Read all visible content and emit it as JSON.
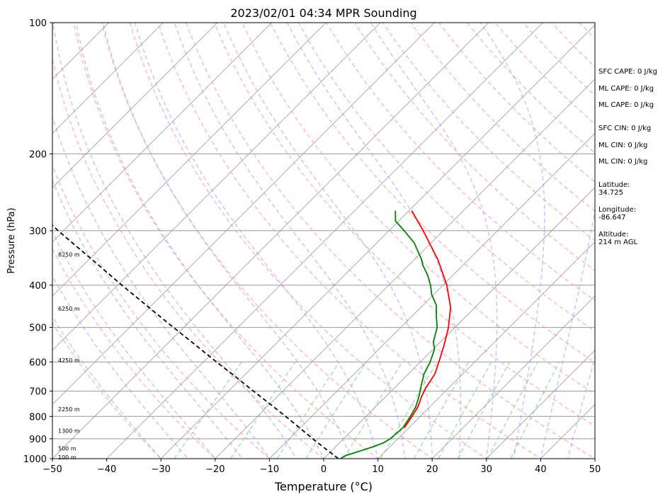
{
  "chart_data": {
    "type": "skew-t",
    "title": "2023/02/01 04:34 MPR Sounding",
    "xlabel": "Temperature (°C)",
    "ylabel": "Pressure (hPa)",
    "xlim": [
      -50,
      50
    ],
    "ylim": [
      1000,
      100
    ],
    "x_scale": "linear",
    "y_scale": "log",
    "skew_degrees": 45,
    "grid": true,
    "x_ticks": [
      "−50",
      "−40",
      "−30",
      "−20",
      "−10",
      "0",
      "10",
      "20",
      "30",
      "40",
      "50"
    ],
    "x_tick_values": [
      -50,
      -40,
      -30,
      -20,
      -10,
      0,
      10,
      20,
      30,
      40,
      50
    ],
    "y_ticks": [
      "100",
      "200",
      "300",
      "400",
      "500",
      "600",
      "700",
      "800",
      "900",
      "1000"
    ],
    "y_tick_values": [
      100,
      200,
      300,
      400,
      500,
      600,
      700,
      800,
      900,
      1000
    ],
    "height_labels": [
      {
        "text": "100 m",
        "p": 992
      },
      {
        "text": "500 m",
        "p": 948
      },
      {
        "text": "1300 m",
        "p": 862
      },
      {
        "text": "2250 m",
        "p": 770
      },
      {
        "text": "4250 m",
        "p": 595
      },
      {
        "text": "6250 m",
        "p": 453
      },
      {
        "text": "8250 m",
        "p": 340
      }
    ],
    "series": [
      {
        "key": "temperature",
        "color": "#ff0000",
        "style": "solid",
        "points": [
          {
            "p": 850,
            "t": 9.2
          },
          {
            "p": 800,
            "t": 8.5
          },
          {
            "p": 760,
            "t": 7.8
          },
          {
            "p": 720,
            "t": 6.6
          },
          {
            "p": 690,
            "t": 5.8
          },
          {
            "p": 640,
            "t": 4.9
          },
          {
            "p": 600,
            "t": 3.4
          },
          {
            "p": 550,
            "t": 1.3
          },
          {
            "p": 500,
            "t": -1.2
          },
          {
            "p": 450,
            "t": -4.5
          },
          {
            "p": 400,
            "t": -9.3
          },
          {
            "p": 350,
            "t": -15.6
          },
          {
            "p": 300,
            "t": -23.7
          },
          {
            "p": 270,
            "t": -29.5
          }
        ]
      },
      {
        "key": "dewpoint",
        "color": "#008000",
        "style": "solid",
        "points": [
          {
            "p": 1000,
            "t": 3.1
          },
          {
            "p": 985,
            "t": 3.4
          },
          {
            "p": 965,
            "t": 4.9
          },
          {
            "p": 940,
            "t": 6.9
          },
          {
            "p": 920,
            "t": 8.1
          },
          {
            "p": 900,
            "t": 8.6
          },
          {
            "p": 870,
            "t": 8.8
          },
          {
            "p": 850,
            "t": 8.9
          },
          {
            "p": 800,
            "t": 8.2
          },
          {
            "p": 760,
            "t": 7.4
          },
          {
            "p": 720,
            "t": 6.1
          },
          {
            "p": 690,
            "t": 4.9
          },
          {
            "p": 640,
            "t": 2.9
          },
          {
            "p": 600,
            "t": 1.8
          },
          {
            "p": 560,
            "t": 0.2
          },
          {
            "p": 540,
            "t": -1.3
          },
          {
            "p": 500,
            "t": -3.3
          },
          {
            "p": 470,
            "t": -5.6
          },
          {
            "p": 445,
            "t": -7.5
          },
          {
            "p": 420,
            "t": -10.4
          },
          {
            "p": 400,
            "t": -12.3
          },
          {
            "p": 380,
            "t": -14.6
          },
          {
            "p": 360,
            "t": -17.4
          },
          {
            "p": 350,
            "t": -18.6
          },
          {
            "p": 320,
            "t": -23.1
          },
          {
            "p": 300,
            "t": -27.2
          },
          {
            "p": 285,
            "t": -30.6
          },
          {
            "p": 270,
            "t": -32.5
          }
        ]
      },
      {
        "key": "parcel",
        "color": "#000000",
        "style": "dashed",
        "points": [
          {
            "p": 1000,
            "t": 2.7
          },
          {
            "p": 950,
            "t": -1.4
          },
          {
            "p": 900,
            "t": -5.7
          },
          {
            "p": 850,
            "t": -10.1
          },
          {
            "p": 800,
            "t": -14.8
          },
          {
            "p": 750,
            "t": -19.9
          },
          {
            "p": 700,
            "t": -25.4
          },
          {
            "p": 650,
            "t": -31.2
          },
          {
            "p": 600,
            "t": -37.6
          },
          {
            "p": 550,
            "t": -44.4
          },
          {
            "p": 500,
            "t": -51.9
          },
          {
            "p": 450,
            "t": -60.1
          },
          {
            "p": 400,
            "t": -69.2
          },
          {
            "p": 350,
            "t": -79.3
          },
          {
            "p": 300,
            "t": -91.0
          },
          {
            "p": 270,
            "t": -98.5
          }
        ]
      }
    ],
    "reference_lines": {
      "dry_adiabat_color": "#ff9999",
      "moist_adiabat_color": "#9999ff",
      "mixing_ratio_color": "#88cc88",
      "isotherm_color": "#999999"
    },
    "stats": [
      "SFC CAPE: 0 J/kg",
      "ML CAPE: 0 J/kg",
      "ML CAPE: 0 J/kg",
      "SFC CIN: 0 J/kg",
      "ML CIN: 0 J/kg",
      "ML CIN: 0 J/kg",
      "Latitude:",
      "34.725",
      "Longitude:",
      "-86.647",
      "Altitude:",
      "214 m AGL"
    ]
  }
}
